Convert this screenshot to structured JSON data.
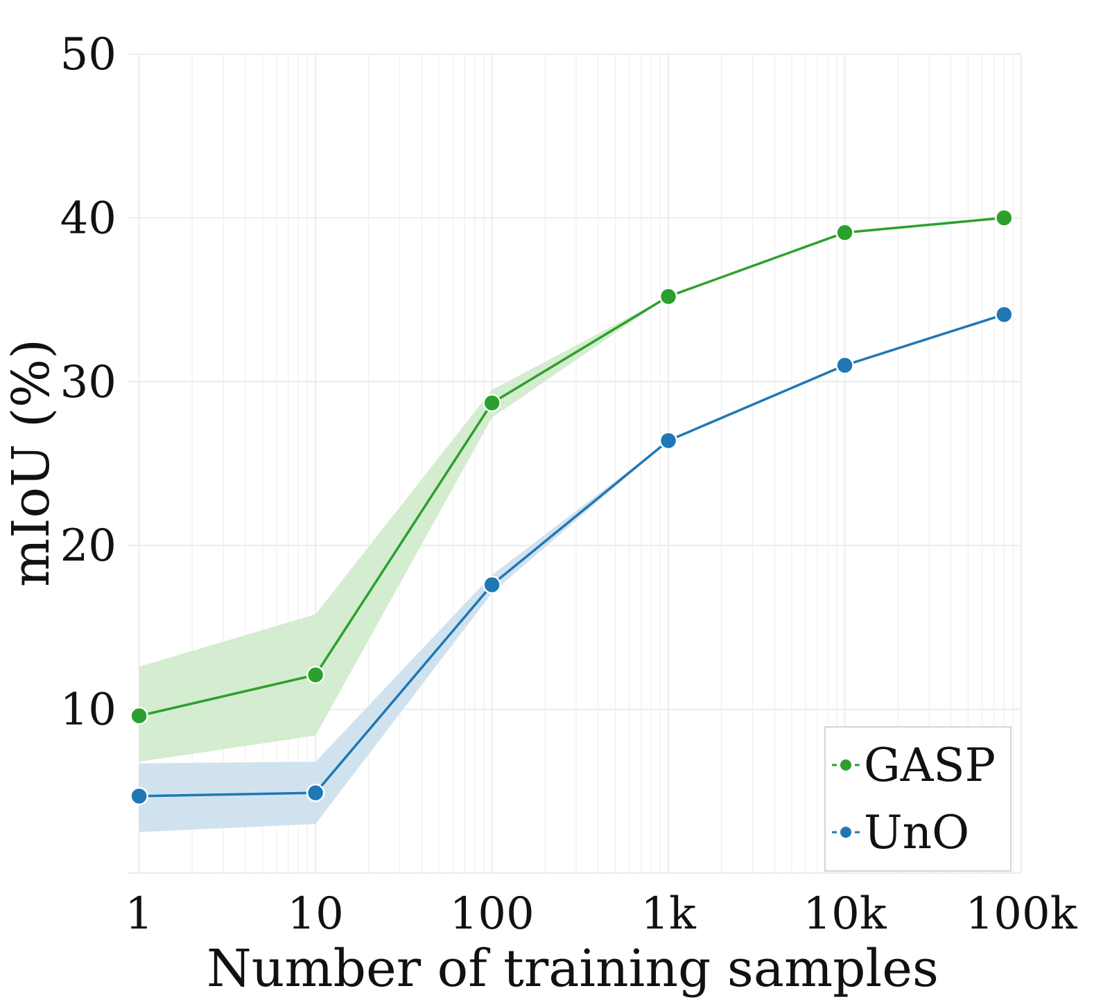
{
  "chart_data": {
    "type": "line",
    "xscale": "log",
    "x": [
      1,
      10,
      100,
      1000,
      10000,
      80000
    ],
    "xlim": [
      0.95,
      100000
    ],
    "ylim": [
      0,
      50
    ],
    "xlabel": "Number of training samples",
    "ylabel": "mIoU (%)",
    "xticks": [
      {
        "value": 1,
        "label": "1"
      },
      {
        "value": 10,
        "label": "10"
      },
      {
        "value": 100,
        "label": "100"
      },
      {
        "value": 1000,
        "label": "1k"
      },
      {
        "value": 10000,
        "label": "10k"
      },
      {
        "value": 100000,
        "label": "100k"
      }
    ],
    "yticks": [
      {
        "value": 10,
        "label": "10"
      },
      {
        "value": 20,
        "label": "20"
      },
      {
        "value": 30,
        "label": "30"
      },
      {
        "value": 40,
        "label": "40"
      },
      {
        "value": 50,
        "label": "50"
      }
    ],
    "grid": true,
    "legend_position": "bottom-right",
    "series": [
      {
        "name": "GASP",
        "color": "#2ca02c",
        "band_color": "#d2ebcc",
        "values": [
          9.6,
          12.1,
          28.7,
          35.2,
          39.1,
          40.0
        ],
        "lower": [
          6.8,
          8.4,
          27.8,
          35.2,
          39.1,
          40.0
        ],
        "upper": [
          12.6,
          15.8,
          29.5,
          35.2,
          39.1,
          40.0
        ]
      },
      {
        "name": "UnO",
        "color": "#1f77b4",
        "band_color": "#cfe0ee",
        "values": [
          4.7,
          4.9,
          17.6,
          26.4,
          31.0,
          34.1
        ],
        "lower": [
          2.5,
          3.0,
          17.1,
          26.4,
          31.0,
          34.1
        ],
        "upper": [
          6.7,
          6.8,
          18.2,
          26.4,
          31.0,
          34.1
        ]
      }
    ]
  }
}
